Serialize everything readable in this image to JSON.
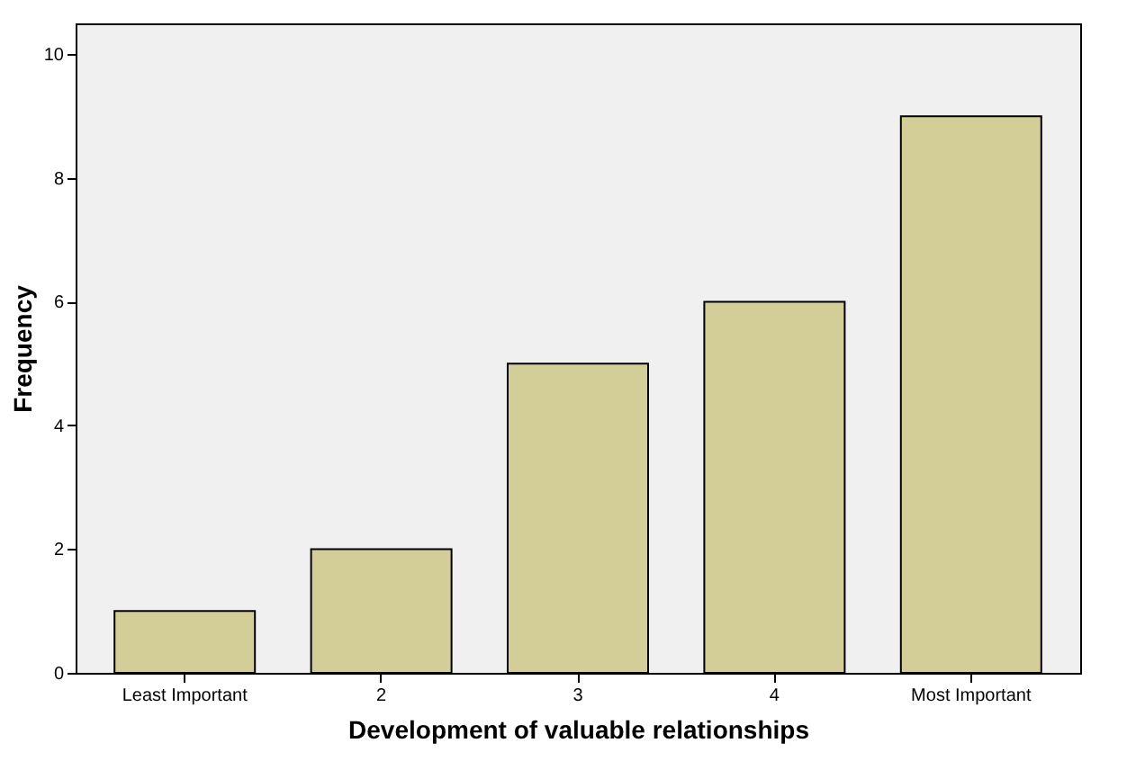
{
  "chart_data": {
    "type": "bar",
    "xlabel": "Development of valuable relationships",
    "ylabel": "Frequency",
    "categories": [
      "Least Important",
      "2",
      "3",
      "4",
      "Most Important"
    ],
    "values": [
      1,
      2,
      5,
      6,
      9
    ],
    "color": "#d3ce97",
    "ylim": [
      0,
      10.5
    ],
    "yticks": [
      0,
      2,
      4,
      6,
      8,
      10
    ],
    "grid": false
  }
}
